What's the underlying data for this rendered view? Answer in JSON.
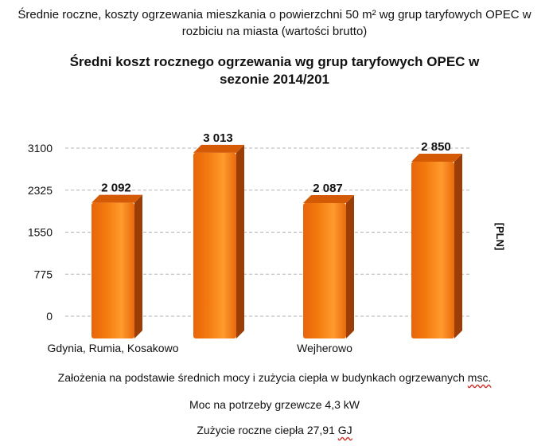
{
  "header": {
    "title_line1": "Średnie roczne, koszty ogrzewania mieszkania o powierzchni 50 m² wg grup taryfowych OPEC w",
    "title_line2": "rozbiciu na miasta (wartości brutto)"
  },
  "chart_data": {
    "type": "bar",
    "title_line1": "Średni koszt rocznego ogrzewania wg grup taryfowych OPEC w",
    "title_line2": "sezonie 2014/201",
    "ylabel": "[PLN]",
    "ylim": [
      0,
      3100
    ],
    "yticks": [
      0,
      775,
      1550,
      2325,
      3100
    ],
    "ytick_labels": [
      "0",
      "775",
      "1550",
      "2325",
      "3100"
    ],
    "categories": [
      "Gdynia, Rumia, Kosakowo",
      "",
      "Wejherowo",
      ""
    ],
    "values": [
      2092,
      3013,
      2087,
      2850
    ],
    "value_labels": [
      "2 092",
      "3 013",
      "2 087",
      "2 850"
    ],
    "grid": true,
    "bar_color": "#f47b0e",
    "bar_top_color": "#d45a06",
    "bar_side_color": "#9a3d06"
  },
  "notes": {
    "line1_main": "Założenia na podstawie średnich mocy i zużycia ciepła w budynkach ogrzewanych ",
    "line1_tail": "msc.",
    "line2": "Moc na potrzeby grzewcze 4,3 kW",
    "line3_main": "Zużycie roczne ciepła 27,91 ",
    "line3_tail": "GJ"
  }
}
